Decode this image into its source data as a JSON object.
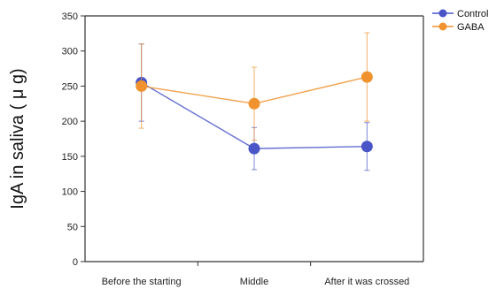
{
  "chart_data": {
    "type": "line",
    "title": "",
    "xlabel": "",
    "ylabel": "IgA in saliva ( μ g)",
    "categories": [
      "Before the starting",
      "Middle",
      "After it was crossed"
    ],
    "ylim": [
      0,
      350
    ],
    "yticks": [
      0,
      50,
      100,
      150,
      200,
      250,
      300,
      350
    ],
    "grid": false,
    "legend_position": "top-right",
    "series": [
      {
        "name": "Control",
        "color": "#4a56c8",
        "values": [
          255,
          161,
          164
        ],
        "error": [
          55,
          30,
          34
        ]
      },
      {
        "name": "GABA",
        "color": "#f0922e",
        "values": [
          250,
          225,
          263
        ],
        "error": [
          60,
          52,
          63
        ]
      }
    ]
  }
}
